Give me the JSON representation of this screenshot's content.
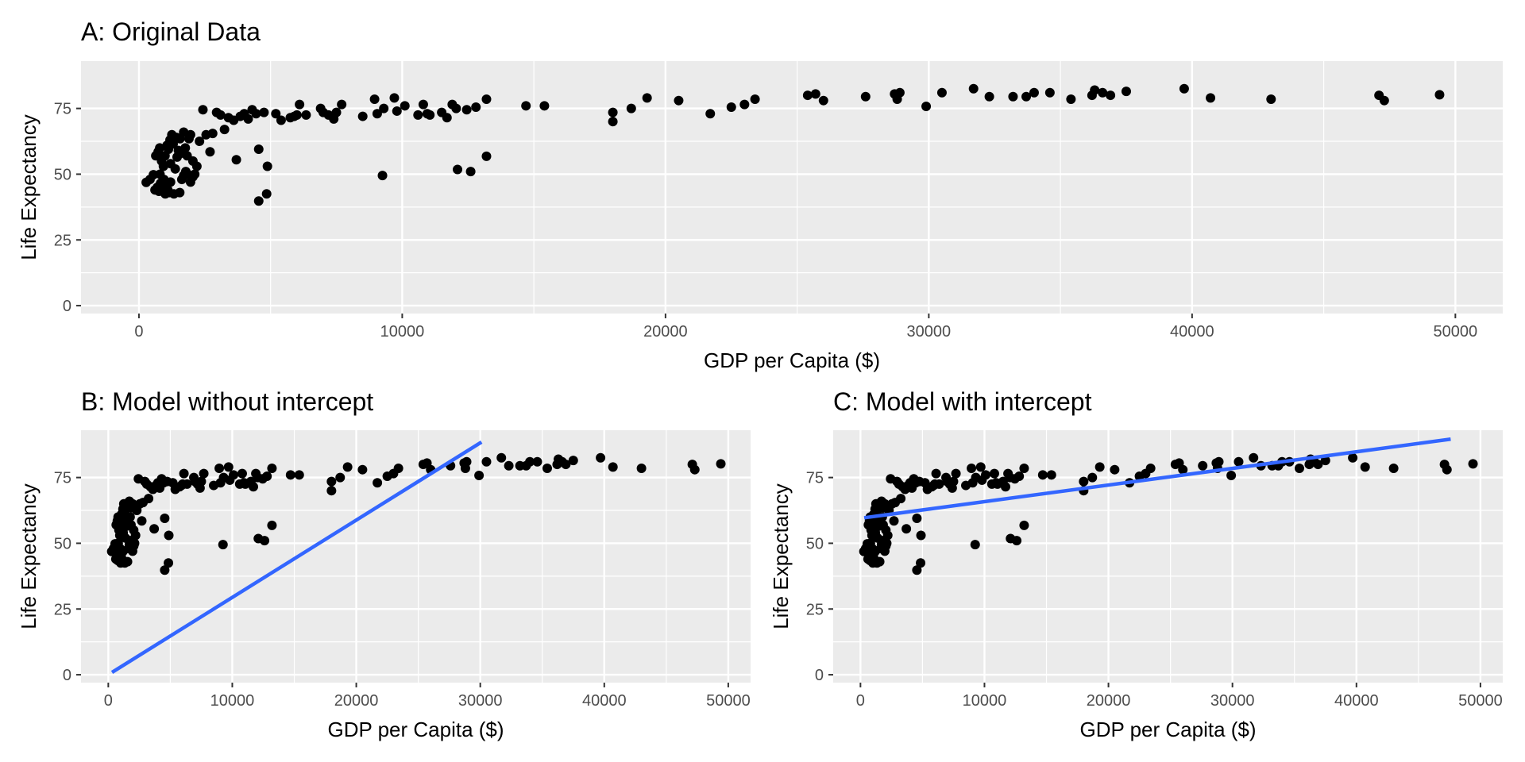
{
  "chart_data": [
    {
      "type": "scatter",
      "title": "A: Original Data",
      "xlabel": "GDP per Capita ($)",
      "ylabel": "Life Expectancy",
      "xlim": [
        -2200,
        51800
      ],
      "ylim": [
        -3,
        93
      ],
      "x_ticks": [
        0,
        10000,
        20000,
        30000,
        40000,
        50000
      ],
      "x_tick_labels": [
        "0",
        "10000",
        "20000",
        "30000",
        "40000",
        "50000"
      ],
      "y_ticks": [
        0,
        25,
        50,
        75
      ],
      "y_tick_labels": [
        "0",
        "25",
        "50",
        "75"
      ],
      "grid": true,
      "fit_line": null,
      "points": "scatter_points"
    },
    {
      "type": "scatter",
      "title": "B: Model without intercept",
      "xlabel": "GDP per Capita ($)",
      "ylabel": "Life Expectancy",
      "xlim": [
        -2200,
        51800
      ],
      "ylim": [
        -3,
        93
      ],
      "x_ticks": [
        0,
        10000,
        20000,
        30000,
        40000,
        50000
      ],
      "x_tick_labels": [
        "0",
        "10000",
        "20000",
        "30000",
        "40000",
        "50000"
      ],
      "y_ticks": [
        0,
        25,
        50,
        75
      ],
      "y_tick_labels": [
        "0",
        "25",
        "50",
        "75"
      ],
      "grid": true,
      "fit_line": {
        "x": [
          300,
          30100
        ],
        "y": [
          0.9,
          88.5
        ],
        "color": "#3366ff"
      },
      "points": "scatter_points"
    },
    {
      "type": "scatter",
      "title": "C: Model with intercept",
      "xlabel": "GDP per Capita ($)",
      "ylabel": "Life Expectancy",
      "xlim": [
        -2200,
        51800
      ],
      "ylim": [
        -3,
        93
      ],
      "x_ticks": [
        0,
        10000,
        20000,
        30000,
        40000,
        50000
      ],
      "x_tick_labels": [
        "0",
        "10000",
        "20000",
        "30000",
        "40000",
        "50000"
      ],
      "y_ticks": [
        0,
        25,
        50,
        75
      ],
      "y_tick_labels": [
        "0",
        "25",
        "50",
        "75"
      ],
      "grid": true,
      "fit_line": {
        "x": [
          300,
          47600
        ],
        "y": [
          59.7,
          89.6
        ],
        "color": "#3366ff"
      },
      "points": "scatter_points"
    }
  ],
  "scatter_points": [
    [
      277,
      46.9
    ],
    [
      420,
      48
    ],
    [
      550,
      49.8
    ],
    [
      610,
      44
    ],
    [
      700,
      45
    ],
    [
      760,
      43.5
    ],
    [
      820,
      46.5
    ],
    [
      880,
      47
    ],
    [
      950,
      48
    ],
    [
      1000,
      42.5
    ],
    [
      1040,
      45.5
    ],
    [
      1100,
      44
    ],
    [
      1150,
      43
    ],
    [
      1200,
      47
    ],
    [
      640,
      57
    ],
    [
      730,
      58.5
    ],
    [
      790,
      60
    ],
    [
      860,
      55
    ],
    [
      930,
      53
    ],
    [
      990,
      57
    ],
    [
      1070,
      61
    ],
    [
      1120,
      59.5
    ],
    [
      1180,
      63
    ],
    [
      1250,
      65
    ],
    [
      1300,
      61.5
    ],
    [
      1380,
      52
    ],
    [
      1450,
      56.5
    ],
    [
      1500,
      59
    ],
    [
      1560,
      63.5
    ],
    [
      1620,
      58
    ],
    [
      1700,
      66
    ],
    [
      1760,
      60
    ],
    [
      1830,
      57
    ],
    [
      1900,
      63.5
    ],
    [
      1960,
      65
    ],
    [
      2050,
      55
    ],
    [
      2120,
      50
    ],
    [
      2200,
      53
    ],
    [
      2300,
      62.5
    ],
    [
      1330,
      42.5
    ],
    [
      1550,
      43
    ],
    [
      1630,
      48
    ],
    [
      1700,
      49.5
    ],
    [
      1780,
      51
    ],
    [
      1850,
      50
    ],
    [
      1960,
      47
    ],
    [
      2050,
      49
    ],
    [
      800,
      50
    ],
    [
      1200,
      54
    ],
    [
      1420,
      64
    ],
    [
      2430,
      74.5
    ],
    [
      2550,
      65
    ],
    [
      2700,
      58.5
    ],
    [
      2800,
      65.5
    ],
    [
      2950,
      73.5
    ],
    [
      3100,
      72.5
    ],
    [
      3250,
      67
    ],
    [
      3400,
      71.5
    ],
    [
      3600,
      70.5
    ],
    [
      3700,
      55.5
    ],
    [
      3850,
      72
    ],
    [
      4000,
      73
    ],
    [
      4150,
      71
    ],
    [
      4300,
      74.5
    ],
    [
      4450,
      73
    ],
    [
      4550,
      59.5
    ],
    [
      4550,
      39.8
    ],
    [
      4750,
      73.5
    ],
    [
      4850,
      42.5
    ],
    [
      4880,
      53
    ],
    [
      5200,
      73
    ],
    [
      5400,
      70.5
    ],
    [
      5750,
      71.5
    ],
    [
      5900,
      72
    ],
    [
      6000,
      72.5
    ],
    [
      6100,
      76.5
    ],
    [
      6350,
      72.5
    ],
    [
      6900,
      75
    ],
    [
      7000,
      73.5
    ],
    [
      7200,
      72.5
    ],
    [
      7400,
      71
    ],
    [
      7500,
      73.5
    ],
    [
      7700,
      76.5
    ],
    [
      8500,
      72
    ],
    [
      8950,
      78.5
    ],
    [
      9050,
      73
    ],
    [
      9300,
      75
    ],
    [
      9250,
      49.5
    ],
    [
      9700,
      79
    ],
    [
      9800,
      74
    ],
    [
      10100,
      76
    ],
    [
      10600,
      72.5
    ],
    [
      10800,
      76.5
    ],
    [
      10950,
      73
    ],
    [
      11050,
      72.5
    ],
    [
      11500,
      73.5
    ],
    [
      11700,
      71.5
    ],
    [
      11900,
      76.5
    ],
    [
      12050,
      75
    ],
    [
      12100,
      51.8
    ],
    [
      12450,
      74.5
    ],
    [
      12600,
      51
    ],
    [
      12800,
      75.5
    ],
    [
      13200,
      78.5
    ],
    [
      13200,
      56.8
    ],
    [
      14700,
      76
    ],
    [
      15400,
      76
    ],
    [
      18000,
      73.5
    ],
    [
      18000,
      70
    ],
    [
      18700,
      75
    ],
    [
      19300,
      79
    ],
    [
      20500,
      78
    ],
    [
      21700,
      73
    ],
    [
      22500,
      75.5
    ],
    [
      23000,
      76.5
    ],
    [
      23400,
      78.5
    ],
    [
      25400,
      80
    ],
    [
      25700,
      80.5
    ],
    [
      26000,
      78
    ],
    [
      27600,
      79.5
    ],
    [
      28700,
      80.5
    ],
    [
      28800,
      78.5
    ],
    [
      28900,
      81
    ],
    [
      29900,
      75.8
    ],
    [
      30500,
      81
    ],
    [
      31700,
      82.5
    ],
    [
      32300,
      79.5
    ],
    [
      33200,
      79.5
    ],
    [
      33700,
      79.5
    ],
    [
      34000,
      81
    ],
    [
      34600,
      81
    ],
    [
      35400,
      78.5
    ],
    [
      36200,
      80
    ],
    [
      36300,
      82
    ],
    [
      36600,
      81
    ],
    [
      36900,
      80
    ],
    [
      37500,
      81.5
    ],
    [
      39700,
      82.5
    ],
    [
      40700,
      79
    ],
    [
      43000,
      78.5
    ],
    [
      47100,
      80
    ],
    [
      47300,
      78
    ],
    [
      49400,
      80.2
    ]
  ]
}
